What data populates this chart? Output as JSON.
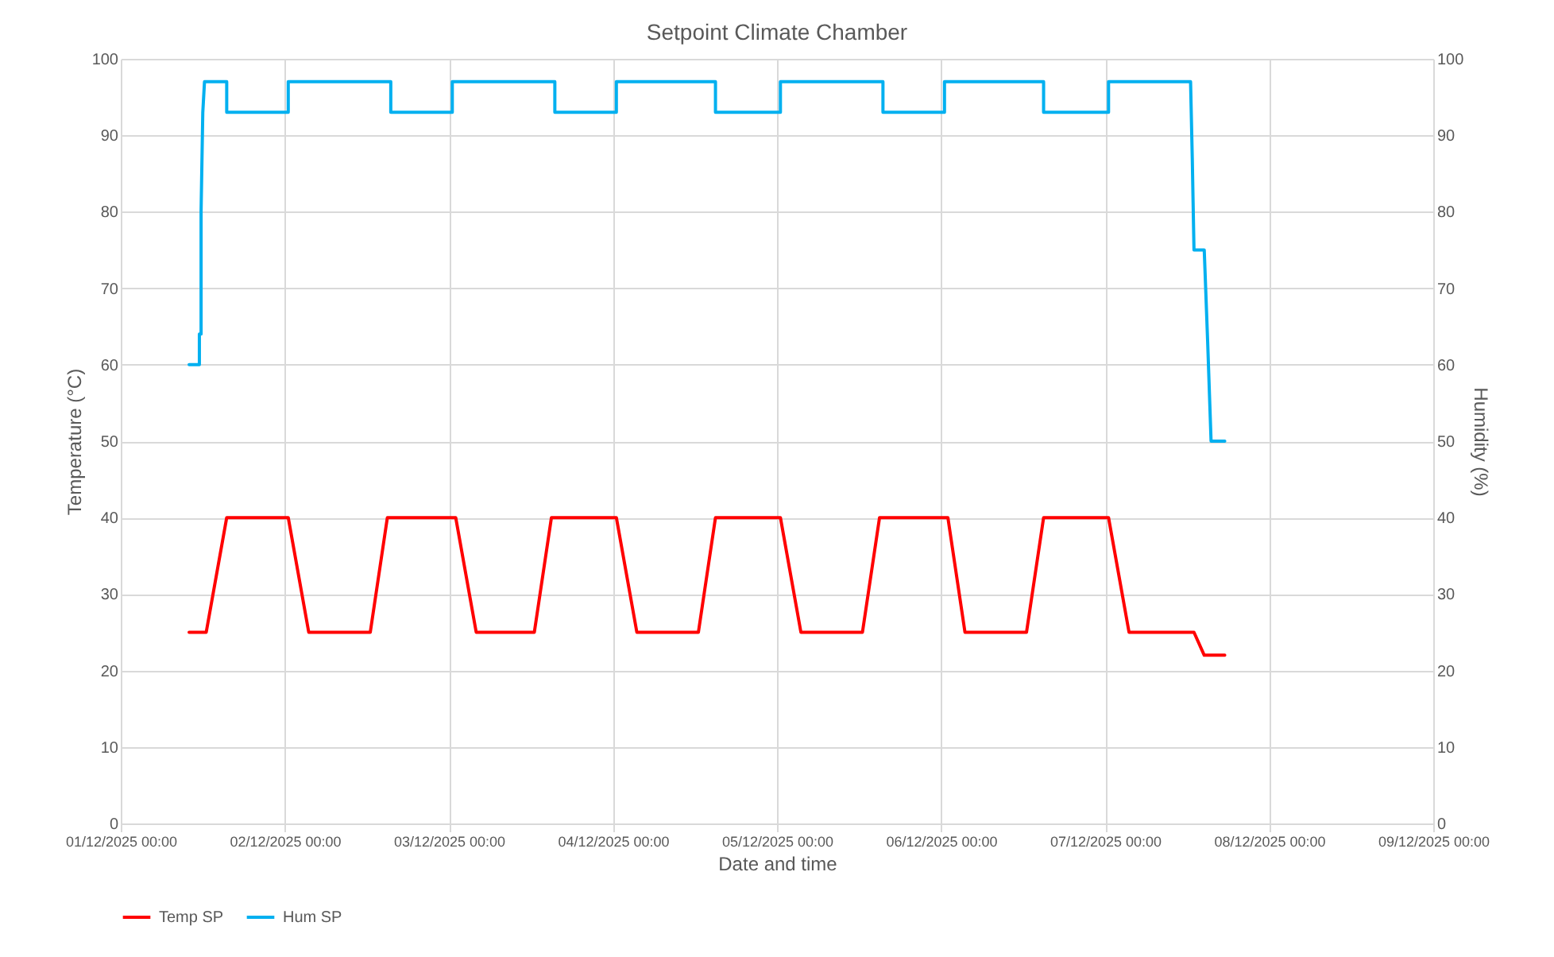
{
  "chart_data": {
    "type": "line",
    "title": "Setpoint Climate Chamber",
    "xlabel": "Date and time",
    "ylabel": "Temperature (°C)",
    "y2label": "Humidity (%)",
    "xlim": [
      "2025-12-01",
      "2025-12-09"
    ],
    "xticks": [
      {
        "value": "2025-12-01",
        "label": "01/12/2025 00:00"
      },
      {
        "value": "2025-12-02",
        "label": "02/12/2025 00:00"
      },
      {
        "value": "2025-12-03",
        "label": "03/12/2025 00:00"
      },
      {
        "value": "2025-12-04",
        "label": "04/12/2025 00:00"
      },
      {
        "value": "2025-12-05",
        "label": "05/12/2025 00:00"
      },
      {
        "value": "2025-12-06",
        "label": "06/12/2025 00:00"
      },
      {
        "value": "2025-12-07",
        "label": "07/12/2025 00:00"
      },
      {
        "value": "2025-12-08",
        "label": "08/12/2025 00:00"
      },
      {
        "value": "2025-12-09",
        "label": "09/12/2025 00:00"
      }
    ],
    "ylim": [
      0,
      100
    ],
    "yticks": [
      0,
      10,
      20,
      30,
      40,
      50,
      60,
      70,
      80,
      90,
      100
    ],
    "y2lim": [
      0,
      100
    ],
    "y2ticks": [
      0,
      10,
      20,
      30,
      40,
      50,
      60,
      70,
      80,
      90,
      100
    ],
    "grid": true,
    "legend": "bottom",
    "marker": "none",
    "line_style": "solid",
    "series": [
      {
        "name": "Temp SP",
        "color": "#ff0000",
        "x": [
          "2025-12-01T10:00",
          "2025-12-01T12:30",
          "2025-12-01T15:30",
          "2025-12-02T00:30",
          "2025-12-02T03:30",
          "2025-12-02T12:30",
          "2025-12-02T15:00",
          "2025-12-03T01:00",
          "2025-12-03T04:00",
          "2025-12-03T12:30",
          "2025-12-03T15:00",
          "2025-12-04T00:30",
          "2025-12-04T03:30",
          "2025-12-04T12:30",
          "2025-12-04T15:00",
          "2025-12-05T00:30",
          "2025-12-05T03:30",
          "2025-12-05T12:30",
          "2025-12-05T15:00",
          "2025-12-06T01:00",
          "2025-12-06T03:30",
          "2025-12-06T12:30",
          "2025-12-06T15:00",
          "2025-12-07T00:30",
          "2025-12-07T03:30",
          "2025-12-07T13:00",
          "2025-12-07T14:30",
          "2025-12-07T17:30"
        ],
        "values": [
          25,
          25,
          40,
          40,
          25,
          25,
          40,
          40,
          25,
          25,
          40,
          40,
          25,
          25,
          40,
          40,
          25,
          25,
          40,
          40,
          25,
          25,
          40,
          40,
          25,
          25,
          22,
          22
        ]
      },
      {
        "name": "Hum SP",
        "color": "#00b0f0",
        "axis": "y2",
        "x": [
          "2025-12-01T10:00",
          "2025-12-01T11:30",
          "2025-12-01T11:30",
          "2025-12-01T11:45",
          "2025-12-01T11:45",
          "2025-12-01T12:00",
          "2025-12-01T12:15",
          "2025-12-01T15:30",
          "2025-12-01T15:30",
          "2025-12-02T00:30",
          "2025-12-02T00:30",
          "2025-12-02T15:30",
          "2025-12-02T15:30",
          "2025-12-03T00:30",
          "2025-12-03T00:30",
          "2025-12-03T15:30",
          "2025-12-03T15:30",
          "2025-12-04T00:30",
          "2025-12-04T00:30",
          "2025-12-04T15:00",
          "2025-12-04T15:00",
          "2025-12-05T00:30",
          "2025-12-05T00:30",
          "2025-12-05T15:30",
          "2025-12-05T15:30",
          "2025-12-06T00:30",
          "2025-12-06T00:30",
          "2025-12-06T15:00",
          "2025-12-06T15:00",
          "2025-12-07T00:30",
          "2025-12-07T00:30",
          "2025-12-07T12:30",
          "2025-12-07T12:45",
          "2025-12-07T13:00",
          "2025-12-07T14:30",
          "2025-12-07T15:00",
          "2025-12-07T15:30",
          "2025-12-07T17:30"
        ],
        "values": [
          60,
          60,
          64,
          64,
          80,
          93,
          97,
          97,
          93,
          93,
          97,
          97,
          93,
          93,
          97,
          97,
          93,
          93,
          97,
          97,
          93,
          93,
          97,
          97,
          93,
          93,
          97,
          97,
          93,
          93,
          97,
          97,
          87,
          75,
          75,
          63,
          50,
          50
        ]
      }
    ]
  }
}
